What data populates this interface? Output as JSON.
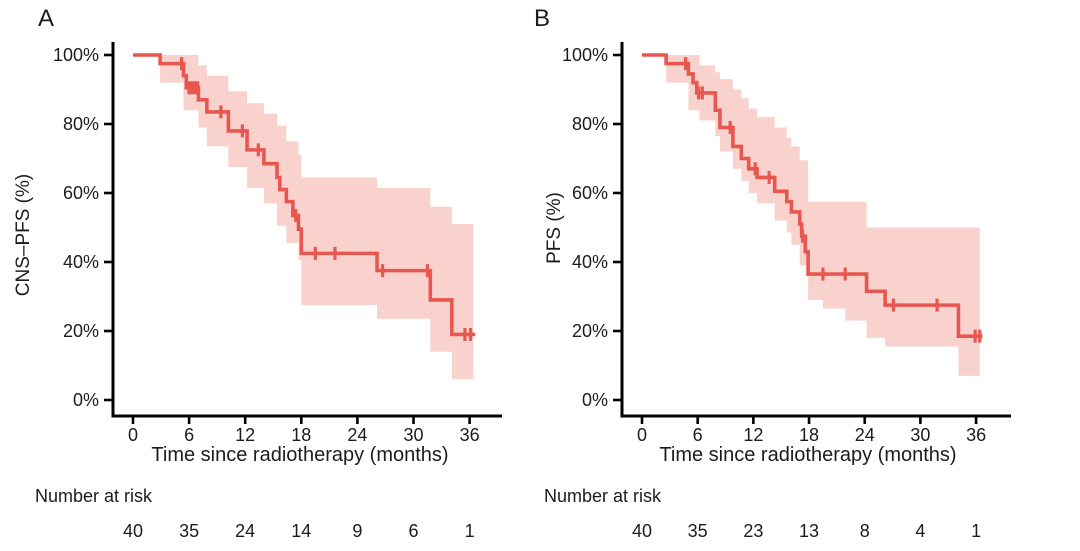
{
  "figure": {
    "background": "#ffffff",
    "axis_color": "#000000",
    "text_color": "#1c1c1c"
  },
  "chart_data": [
    {
      "type": "line",
      "subtype": "kaplan-meier-step-with-confidence-band",
      "panel_label": "A",
      "ylabel": "CNS–PFS (%)",
      "xlabel": "Time since radiotherapy (months)",
      "risk_label": "Number at risk",
      "grid": false,
      "legend": "none",
      "xlim": [
        0,
        39
      ],
      "ylim": [
        0,
        100
      ],
      "x_ticks": [
        0,
        6,
        12,
        18,
        24,
        30,
        36
      ],
      "x_tick_labels": [
        "0",
        "6",
        "12",
        "18",
        "24",
        "30",
        "36"
      ],
      "y_ticks": [
        0,
        20,
        40,
        60,
        80,
        100
      ],
      "y_tick_labels": [
        "0%",
        "20%",
        "40%",
        "60%",
        "80%",
        "100%"
      ],
      "line_color": "#e8574f",
      "band_color": "#f9d2ce",
      "steps": [
        [
          0,
          100
        ],
        [
          2.9,
          97.5
        ],
        [
          5.4,
          94
        ],
        [
          5.7,
          90.5
        ],
        [
          7.0,
          87
        ],
        [
          7.9,
          83.5
        ],
        [
          10.2,
          78
        ],
        [
          12.2,
          72.5
        ],
        [
          14.0,
          68.5
        ],
        [
          15.4,
          64.5
        ],
        [
          15.7,
          61
        ],
        [
          16.4,
          57.5
        ],
        [
          17.1,
          53.5
        ],
        [
          17.7,
          49.5
        ],
        [
          18.0,
          42.5
        ],
        [
          26.1,
          37.5
        ],
        [
          31.8,
          29
        ],
        [
          34.1,
          19
        ]
      ],
      "end_time": 36.6,
      "censors": [
        [
          5.2,
          97.5
        ],
        [
          6.0,
          90.5
        ],
        [
          6.3,
          90.5
        ],
        [
          6.6,
          90.5
        ],
        [
          6.9,
          90.5
        ],
        [
          9.4,
          83.5
        ],
        [
          11.7,
          78
        ],
        [
          13.4,
          72.5
        ],
        [
          17.4,
          53.5
        ],
        [
          19.5,
          42.5
        ],
        [
          21.6,
          42.5
        ],
        [
          26.7,
          37.5
        ],
        [
          31.5,
          37.5
        ],
        [
          35.5,
          19
        ],
        [
          36.1,
          19
        ]
      ],
      "ci": [
        [
          2.9,
          5.4,
          92,
          100
        ],
        [
          5.4,
          7.0,
          84,
          100
        ],
        [
          7.0,
          7.9,
          79,
          97
        ],
        [
          7.9,
          10.2,
          73.5,
          94
        ],
        [
          10.2,
          12.2,
          67.5,
          89.5
        ],
        [
          12.2,
          14.0,
          61.5,
          86
        ],
        [
          14.0,
          15.4,
          57,
          83
        ],
        [
          15.4,
          16.4,
          50.5,
          79.5
        ],
        [
          16.4,
          17.7,
          45.5,
          75
        ],
        [
          17.7,
          18.0,
          40.5,
          71
        ],
        [
          18.0,
          26.1,
          27.5,
          64.5
        ],
        [
          26.1,
          31.8,
          23.5,
          61.5
        ],
        [
          31.8,
          34.1,
          14,
          56
        ],
        [
          34.1,
          36.4,
          6,
          51
        ]
      ],
      "risk": {
        "times": [
          0,
          6,
          12,
          18,
          24,
          30,
          36
        ],
        "values": [
          "40",
          "35",
          "24",
          "14",
          "9",
          "6",
          "1"
        ]
      }
    },
    {
      "type": "line",
      "subtype": "kaplan-meier-step-with-confidence-band",
      "panel_label": "B",
      "ylabel": "PFS (%)",
      "xlabel": "Time since radiotherapy (months)",
      "risk_label": "Number at risk",
      "grid": false,
      "legend": "none",
      "xlim": [
        0,
        39
      ],
      "ylim": [
        0,
        100
      ],
      "x_ticks": [
        0,
        6,
        12,
        18,
        24,
        30,
        36
      ],
      "x_tick_labels": [
        "0",
        "6",
        "12",
        "18",
        "24",
        "30",
        "36"
      ],
      "y_ticks": [
        0,
        20,
        40,
        60,
        80,
        100
      ],
      "y_tick_labels": [
        "0%",
        "20%",
        "40%",
        "60%",
        "80%",
        "100%"
      ],
      "line_color": "#e8574f",
      "band_color": "#f9d2ce",
      "steps": [
        [
          0,
          100
        ],
        [
          2.6,
          97.5
        ],
        [
          5.0,
          94.5
        ],
        [
          5.5,
          92
        ],
        [
          5.9,
          89
        ],
        [
          7.9,
          84
        ],
        [
          8.4,
          79
        ],
        [
          9.8,
          73.5
        ],
        [
          10.7,
          70
        ],
        [
          11.5,
          67
        ],
        [
          12.4,
          64.5
        ],
        [
          14.3,
          60.5
        ],
        [
          15.6,
          57.5
        ],
        [
          16.1,
          54.5
        ],
        [
          17.0,
          51
        ],
        [
          17.2,
          47.5
        ],
        [
          17.6,
          43
        ],
        [
          17.9,
          36.5
        ],
        [
          24.2,
          31.5
        ],
        [
          26.2,
          27.5
        ],
        [
          34.1,
          18.5
        ]
      ],
      "end_time": 36.7,
      "censors": [
        [
          4.7,
          97.5
        ],
        [
          6.1,
          89
        ],
        [
          6.5,
          89
        ],
        [
          9.5,
          79
        ],
        [
          12.2,
          67
        ],
        [
          13.7,
          64.5
        ],
        [
          17.3,
          47.5
        ],
        [
          19.5,
          36.5
        ],
        [
          21.9,
          36.5
        ],
        [
          27.1,
          27.5
        ],
        [
          31.8,
          27.5
        ],
        [
          35.9,
          18.5
        ],
        [
          36.4,
          18.5
        ]
      ],
      "ci": [
        [
          2.6,
          5.0,
          92,
          100
        ],
        [
          5.0,
          6.2,
          84,
          100
        ],
        [
          6.2,
          7.9,
          81,
          97
        ],
        [
          7.9,
          8.4,
          76.5,
          95
        ],
        [
          8.4,
          9.8,
          72,
          93
        ],
        [
          9.8,
          10.7,
          67,
          90
        ],
        [
          10.7,
          11.5,
          63.5,
          87.5
        ],
        [
          11.5,
          12.4,
          60,
          84.5
        ],
        [
          12.4,
          14.3,
          57,
          82
        ],
        [
          14.3,
          15.6,
          52,
          79
        ],
        [
          15.6,
          16.1,
          48.5,
          76
        ],
        [
          16.1,
          17.0,
          45,
          73.5
        ],
        [
          17.0,
          17.9,
          39,
          69.5
        ],
        [
          17.9,
          19.5,
          29,
          57.5
        ],
        [
          19.5,
          21.9,
          26.5,
          57.5
        ],
        [
          21.9,
          24.2,
          23,
          57.5
        ],
        [
          24.2,
          26.2,
          18,
          50
        ],
        [
          26.2,
          34.1,
          15.5,
          50
        ],
        [
          34.1,
          36.4,
          7,
          50
        ]
      ],
      "risk": {
        "times": [
          0,
          6,
          12,
          18,
          24,
          30,
          36
        ],
        "values": [
          "40",
          "35",
          "23",
          "13",
          "8",
          "4",
          "1"
        ]
      }
    }
  ]
}
